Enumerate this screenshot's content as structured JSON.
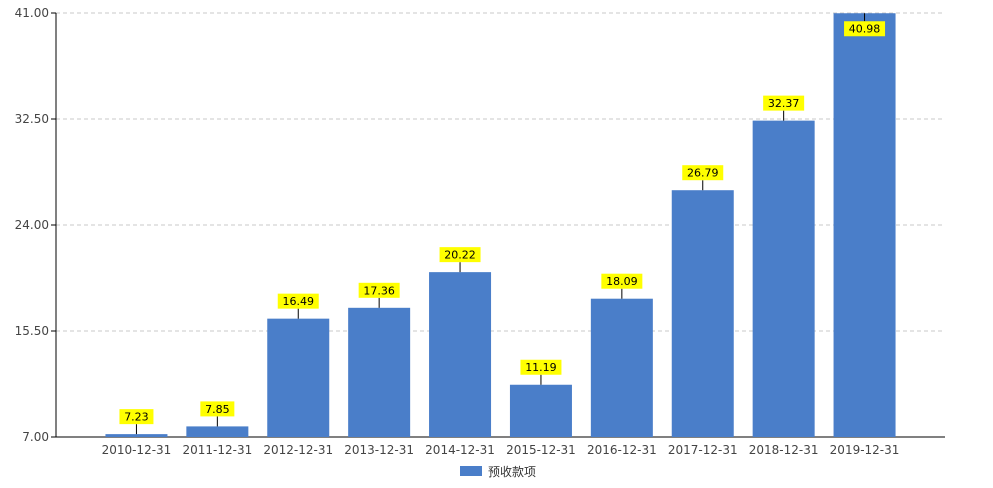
{
  "chart_data": {
    "type": "bar",
    "categories": [
      "2010-12-31",
      "2011-12-31",
      "2012-12-31",
      "2013-12-31",
      "2014-12-31",
      "2015-12-31",
      "2016-12-31",
      "2017-12-31",
      "2018-12-31",
      "2019-12-31"
    ],
    "series": [
      {
        "name": "预收款项",
        "values": [
          7.23,
          7.85,
          16.49,
          17.36,
          20.22,
          11.19,
          18.09,
          26.79,
          32.37,
          40.98
        ]
      }
    ],
    "y_ticks": [
      "7.00",
      "15.50",
      "24.00",
      "32.50",
      "41.00"
    ],
    "ylim": [
      7,
      41
    ],
    "grid": true,
    "legend_position": "bottom-center",
    "colors": {
      "bar": "#4a7ec9",
      "label_bg": "#ffff00",
      "grid": "#c8c8c8",
      "axis": "#000000"
    }
  }
}
